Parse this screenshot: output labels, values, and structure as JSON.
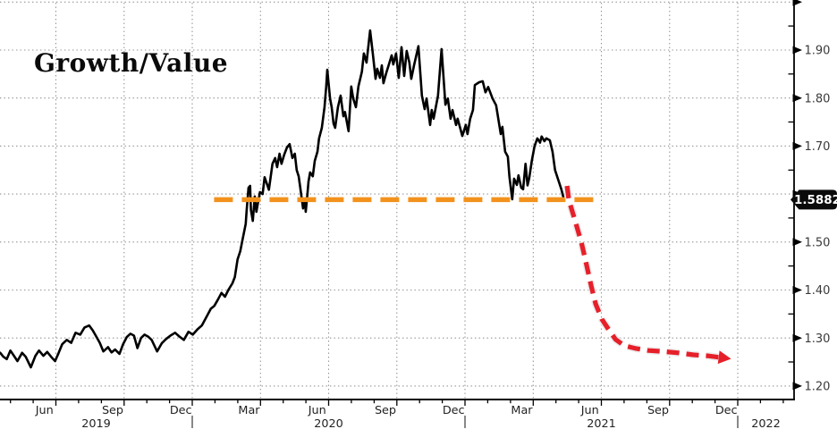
{
  "colors": {
    "background": "#ffffff",
    "series": "#000000",
    "support": "#F2921D",
    "projection": "#E6202A",
    "projection_casing": "#ececec",
    "grid": "#919191",
    "axis": "#000000",
    "label_text": "#3a3a3a",
    "badge_bg": "#0a0a0a",
    "badge_text": "#ffffff"
  },
  "chart_data": {
    "type": "line",
    "title": "Growth/Value",
    "x_axis": {
      "unit": "decimal_year",
      "range": [
        2019.295,
        2022.21
      ],
      "quarter_labels": [
        {
          "t": 2019.458,
          "label": "Jun"
        },
        {
          "t": 2019.708,
          "label": "Sep"
        },
        {
          "t": 2019.958,
          "label": "Dec"
        },
        {
          "t": 2020.208,
          "label": "Mar"
        },
        {
          "t": 2020.458,
          "label": "Jun"
        },
        {
          "t": 2020.708,
          "label": "Sep"
        },
        {
          "t": 2020.958,
          "label": "Dec"
        },
        {
          "t": 2021.208,
          "label": "Mar"
        },
        {
          "t": 2021.458,
          "label": "Jun"
        },
        {
          "t": 2021.708,
          "label": "Sep"
        },
        {
          "t": 2021.958,
          "label": "Dec"
        }
      ],
      "year_labels": [
        "2019",
        "2020",
        "2021",
        "2022"
      ],
      "gridline_quarters": [
        2019.5,
        2019.75,
        2020.0,
        2020.25,
        2020.5,
        2020.75,
        2021.0,
        2021.25,
        2021.5,
        2021.75,
        2022.0
      ]
    },
    "y_axis": {
      "side": "right",
      "range": [
        1.17,
        2.0
      ],
      "minor_tick_step": 0.05,
      "major_ticks": [
        {
          "value": 2.0,
          "label": ""
        },
        {
          "value": 1.9,
          "label": "1.90"
        },
        {
          "value": 1.8,
          "label": "1.80"
        },
        {
          "value": 1.7,
          "label": "1.70"
        },
        {
          "value": 1.6,
          "label": ""
        },
        {
          "value": 1.5,
          "label": "1.50"
        },
        {
          "value": 1.4,
          "label": "1.40"
        },
        {
          "value": 1.3,
          "label": "1.30"
        },
        {
          "value": 1.2,
          "label": "1.20"
        }
      ]
    },
    "annotation_badge": {
      "text": "1.5882",
      "value": 1.5882
    },
    "series": [
      {
        "name": "Growth/Value ratio",
        "type": "line",
        "color": "#000000",
        "points": [
          [
            2019.296,
            1.269
          ],
          [
            2019.307,
            1.261
          ],
          [
            2019.32,
            1.256
          ],
          [
            2019.333,
            1.274
          ],
          [
            2019.346,
            1.263
          ],
          [
            2019.359,
            1.252
          ],
          [
            2019.376,
            1.269
          ],
          [
            2019.389,
            1.261
          ],
          [
            2019.408,
            1.239
          ],
          [
            2019.425,
            1.263
          ],
          [
            2019.438,
            1.274
          ],
          [
            2019.454,
            1.263
          ],
          [
            2019.468,
            1.271
          ],
          [
            2019.484,
            1.26
          ],
          [
            2019.497,
            1.252
          ],
          [
            2019.51,
            1.269
          ],
          [
            2019.523,
            1.287
          ],
          [
            2019.54,
            1.296
          ],
          [
            2019.556,
            1.29
          ],
          [
            2019.572,
            1.311
          ],
          [
            2019.589,
            1.307
          ],
          [
            2019.605,
            1.322
          ],
          [
            2019.622,
            1.326
          ],
          [
            2019.635,
            1.316
          ],
          [
            2019.648,
            1.303
          ],
          [
            2019.661,
            1.29
          ],
          [
            2019.674,
            1.272
          ],
          [
            2019.691,
            1.281
          ],
          [
            2019.704,
            1.27
          ],
          [
            2019.717,
            1.276
          ],
          [
            2019.733,
            1.267
          ],
          [
            2019.746,
            1.287
          ],
          [
            2019.76,
            1.302
          ],
          [
            2019.773,
            1.309
          ],
          [
            2019.786,
            1.305
          ],
          [
            2019.799,
            1.279
          ],
          [
            2019.812,
            1.3
          ],
          [
            2019.825,
            1.307
          ],
          [
            2019.838,
            1.303
          ],
          [
            2019.851,
            1.296
          ],
          [
            2019.871,
            1.272
          ],
          [
            2019.888,
            1.289
          ],
          [
            2019.904,
            1.298
          ],
          [
            2019.92,
            1.305
          ],
          [
            2019.937,
            1.311
          ],
          [
            2019.953,
            1.303
          ],
          [
            2019.969,
            1.296
          ],
          [
            2019.986,
            1.313
          ],
          [
            2020.002,
            1.307
          ],
          [
            2020.019,
            1.318
          ],
          [
            2020.035,
            1.326
          ],
          [
            2020.051,
            1.343
          ],
          [
            2020.068,
            1.361
          ],
          [
            2020.081,
            1.367
          ],
          [
            2020.094,
            1.38
          ],
          [
            2020.107,
            1.394
          ],
          [
            2020.12,
            1.386
          ],
          [
            2020.133,
            1.401
          ],
          [
            2020.147,
            1.414
          ],
          [
            2020.156,
            1.427
          ],
          [
            2020.166,
            1.464
          ],
          [
            2020.176,
            1.481
          ],
          [
            2020.183,
            1.501
          ],
          [
            2020.196,
            1.538
          ],
          [
            2020.199,
            1.563
          ],
          [
            2020.206,
            1.613
          ],
          [
            2020.212,
            1.617
          ],
          [
            2020.215,
            1.567
          ],
          [
            2020.222,
            1.544
          ],
          [
            2020.229,
            1.595
          ],
          [
            2020.235,
            1.563
          ],
          [
            2020.242,
            1.585
          ],
          [
            2020.248,
            1.604
          ],
          [
            2020.258,
            1.6
          ],
          [
            2020.265,
            1.635
          ],
          [
            2020.275,
            1.619
          ],
          [
            2020.281,
            1.609
          ],
          [
            2020.294,
            1.663
          ],
          [
            2020.304,
            1.675
          ],
          [
            2020.311,
            1.656
          ],
          [
            2020.32,
            1.684
          ],
          [
            2020.327,
            1.663
          ],
          [
            2020.337,
            1.682
          ],
          [
            2020.347,
            1.697
          ],
          [
            2020.357,
            1.704
          ],
          [
            2020.367,
            1.675
          ],
          [
            2020.376,
            1.684
          ],
          [
            2020.383,
            1.65
          ],
          [
            2020.39,
            1.637
          ],
          [
            2020.396,
            1.613
          ],
          [
            2020.406,
            1.57
          ],
          [
            2020.413,
            1.585
          ],
          [
            2020.416,
            1.563
          ],
          [
            2020.422,
            1.598
          ],
          [
            2020.426,
            1.626
          ],
          [
            2020.432,
            1.645
          ],
          [
            2020.442,
            1.637
          ],
          [
            2020.449,
            1.669
          ],
          [
            2020.459,
            1.688
          ],
          [
            2020.465,
            1.716
          ],
          [
            2020.475,
            1.738
          ],
          [
            2020.485,
            1.781
          ],
          [
            2020.491,
            1.824
          ],
          [
            2020.495,
            1.859
          ],
          [
            2020.505,
            1.799
          ],
          [
            2020.511,
            1.781
          ],
          [
            2020.518,
            1.747
          ],
          [
            2020.524,
            1.738
          ],
          [
            2020.534,
            1.781
          ],
          [
            2020.544,
            1.805
          ],
          [
            2020.554,
            1.762
          ],
          [
            2020.56,
            1.771
          ],
          [
            2020.573,
            1.731
          ],
          [
            2020.583,
            1.824
          ],
          [
            2020.59,
            1.799
          ],
          [
            2020.6,
            1.781
          ],
          [
            2020.609,
            1.824
          ],
          [
            2020.622,
            1.855
          ],
          [
            2020.629,
            1.893
          ],
          [
            2020.639,
            1.874
          ],
          [
            2020.652,
            1.941
          ],
          [
            2020.662,
            1.893
          ],
          [
            2020.672,
            1.84
          ],
          [
            2020.678,
            1.861
          ],
          [
            2020.688,
            1.842
          ],
          [
            2020.695,
            1.868
          ],
          [
            2020.701,
            1.831
          ],
          [
            2020.711,
            1.852
          ],
          [
            2020.721,
            1.87
          ],
          [
            2020.731,
            1.889
          ],
          [
            2020.737,
            1.87
          ],
          [
            2020.747,
            1.893
          ],
          [
            2020.757,
            1.842
          ],
          [
            2020.767,
            1.906
          ],
          [
            2020.777,
            1.846
          ],
          [
            2020.786,
            1.898
          ],
          [
            2020.796,
            1.874
          ],
          [
            2020.803,
            1.84
          ],
          [
            2020.813,
            1.868
          ],
          [
            2020.829,
            1.908
          ],
          [
            2020.842,
            1.805
          ],
          [
            2020.852,
            1.777
          ],
          [
            2020.859,
            1.799
          ],
          [
            2020.872,
            1.744
          ],
          [
            2020.878,
            1.775
          ],
          [
            2020.885,
            1.757
          ],
          [
            2020.901,
            1.805
          ],
          [
            2020.914,
            1.902
          ],
          [
            2020.928,
            1.786
          ],
          [
            2020.937,
            1.799
          ],
          [
            2020.947,
            1.757
          ],
          [
            2020.954,
            1.775
          ],
          [
            2020.967,
            1.744
          ],
          [
            2020.973,
            1.757
          ],
          [
            2020.99,
            1.721
          ],
          [
            2021.003,
            1.744
          ],
          [
            2021.009,
            1.725
          ],
          [
            2021.019,
            1.757
          ],
          [
            2021.029,
            1.775
          ],
          [
            2021.036,
            1.827
          ],
          [
            2021.052,
            1.833
          ],
          [
            2021.065,
            1.835
          ],
          [
            2021.075,
            1.812
          ],
          [
            2021.085,
            1.823
          ],
          [
            2021.101,
            1.799
          ],
          [
            2021.114,
            1.785
          ],
          [
            2021.131,
            1.725
          ],
          [
            2021.137,
            1.74
          ],
          [
            2021.147,
            1.688
          ],
          [
            2021.157,
            1.678
          ],
          [
            2021.163,
            1.636
          ],
          [
            2021.173,
            1.589
          ],
          [
            2021.18,
            1.632
          ],
          [
            2021.19,
            1.619
          ],
          [
            2021.196,
            1.639
          ],
          [
            2021.206,
            1.613
          ],
          [
            2021.213,
            1.61
          ],
          [
            2021.222,
            1.663
          ],
          [
            2021.229,
            1.618
          ],
          [
            2021.235,
            1.632
          ],
          [
            2021.245,
            1.669
          ],
          [
            2021.255,
            1.7
          ],
          [
            2021.265,
            1.716
          ],
          [
            2021.275,
            1.707
          ],
          [
            2021.281,
            1.72
          ],
          [
            2021.291,
            1.71
          ],
          [
            2021.298,
            1.716
          ],
          [
            2021.311,
            1.712
          ],
          [
            2021.321,
            1.688
          ],
          [
            2021.33,
            1.65
          ],
          [
            2021.344,
            1.626
          ],
          [
            2021.353,
            1.61
          ],
          [
            2021.363,
            1.5882
          ]
        ]
      },
      {
        "name": "Horizontal support level",
        "type": "dashed-horizontal",
        "color": "#F2921D",
        "value": 1.5882,
        "t_start": 2020.08,
        "t_end": 2021.48
      },
      {
        "name": "Projected decline arrow",
        "type": "dashed-arrow",
        "color": "#E6202A",
        "points": [
          [
            2021.374,
            1.617
          ],
          [
            2021.381,
            1.587
          ],
          [
            2021.404,
            1.544
          ],
          [
            2021.427,
            1.498
          ],
          [
            2021.443,
            1.459
          ],
          [
            2021.463,
            1.408
          ],
          [
            2021.479,
            1.371
          ],
          [
            2021.502,
            1.339
          ],
          [
            2021.525,
            1.319
          ],
          [
            2021.552,
            1.297
          ],
          [
            2021.584,
            1.284
          ],
          [
            2021.627,
            1.278
          ],
          [
            2021.673,
            1.274
          ],
          [
            2021.725,
            1.272
          ],
          [
            2021.781,
            1.269
          ],
          [
            2021.837,
            1.265
          ],
          [
            2021.889,
            1.263
          ],
          [
            2021.93,
            1.26
          ]
        ]
      }
    ]
  }
}
